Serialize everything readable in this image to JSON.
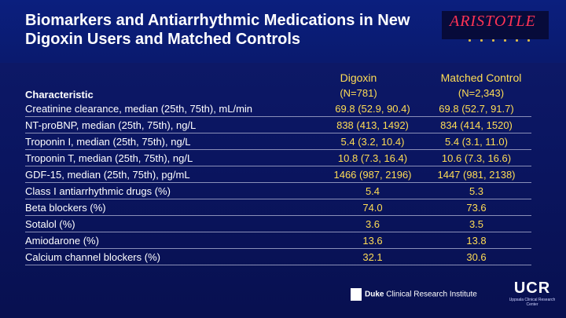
{
  "title": "Biomarkers and Antiarrhythmic Medications in New Digoxin Users and Matched Controls",
  "logo": {
    "text": "ARISTOTLE"
  },
  "columns": {
    "characteristic": "Characteristic",
    "digoxin": {
      "name": "Digoxin",
      "n": "(N=781)"
    },
    "control": {
      "name": "Matched Control",
      "n": "(N=2,343)"
    }
  },
  "rows": [
    {
      "label": "Creatinine clearance, median (25th, 75th), mL/min",
      "digoxin": "69.8 (52.9, 90.4)",
      "control": "69.8 (52.7, 91.7)"
    },
    {
      "label": "NT-proBNP, median (25th, 75th), ng/L",
      "digoxin": "838 (413, 1492)",
      "control": "834 (414, 1520)"
    },
    {
      "label": "Troponin I, median (25th, 75th), ng/L",
      "digoxin": "5.4 (3.2, 10.4)",
      "control": "5.4 (3.1, 11.0)"
    },
    {
      "label": "Troponin T, median (25th, 75th), ng/L",
      "digoxin": "10.8 (7.3, 16.4)",
      "control": "10.6 (7.3, 16.6)"
    },
    {
      "label": "GDF-15, median (25th, 75th), pg/mL",
      "digoxin": "1466 (987, 2196)",
      "control": "1447 (981, 2138)"
    },
    {
      "label": "Class I antiarrhythmic drugs (%)",
      "digoxin": "5.4",
      "control": "5.3"
    },
    {
      "label": "Beta blockers (%)",
      "digoxin": "74.0",
      "control": "73.6"
    },
    {
      "label": "Sotalol (%)",
      "digoxin": "3.6",
      "control": "3.5"
    },
    {
      "label": "Amiodarone (%)",
      "digoxin": "13.6",
      "control": "13.8"
    },
    {
      "label": "Calcium channel blockers (%)",
      "digoxin": "32.1",
      "control": "30.6"
    }
  ],
  "footer": {
    "duke_bold": "Duke",
    "duke_rest": " Clinical Research Institute",
    "ucr": "UCR",
    "ucr_sub": "Uppsala Clinical Research Center"
  }
}
